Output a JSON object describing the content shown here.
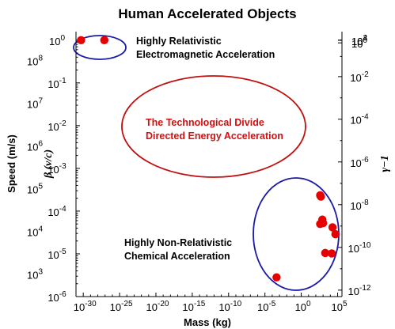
{
  "chart_data": {
    "type": "scatter",
    "title": "Human Accelerated Objects",
    "xlabel": "Mass (kg)",
    "ylabel_speed": "Speed (m/s)",
    "ylabel_beta": "β (v/c)",
    "ylabel_gamma": "γ−1",
    "xscale": "log",
    "yscale": "log",
    "xlim_exp": [
      -31,
      5.6
    ],
    "ylim_exp": [
      -6,
      0.2
    ],
    "x_tick_exponents": [
      -30,
      -25,
      -20,
      -15,
      -10,
      -5,
      0,
      5
    ],
    "beta_tick_exponents": [
      -6,
      -5,
      -4,
      -3,
      -2,
      -1,
      0
    ],
    "speed_tick_exponents": [
      3,
      4,
      5,
      6,
      7,
      8
    ],
    "gamma_tick_exponents": [
      -12,
      -10,
      -8,
      -6,
      -4,
      -2,
      0,
      2,
      4
    ],
    "tick_base": "10",
    "grid": false,
    "marker_color": "#e60000",
    "series": [
      {
        "points": [
          {
            "x_exp": -30.3,
            "y_exp": 0.0
          },
          {
            "x_exp": -27.1,
            "y_exp": 0.0
          },
          {
            "x_exp": -3.4,
            "y_exp": -5.55
          },
          {
            "x_exp": 2.6,
            "y_exp": -3.63
          },
          {
            "x_exp": 2.7,
            "y_exp": -3.66
          },
          {
            "x_exp": 2.9,
            "y_exp": -4.2
          },
          {
            "x_exp": 2.6,
            "y_exp": -4.3
          },
          {
            "x_exp": 3.0,
            "y_exp": -4.28
          },
          {
            "x_exp": 3.3,
            "y_exp": -4.98
          },
          {
            "x_exp": 4.3,
            "y_exp": -4.38
          },
          {
            "x_exp": 4.7,
            "y_exp": -4.54
          },
          {
            "x_exp": 4.2,
            "y_exp": -4.99
          }
        ]
      }
    ],
    "annotations": [
      {
        "id": "relativistic",
        "lines": [
          "Highly Relativistic",
          "Electromagnetic Acceleration"
        ],
        "color": "#000000"
      },
      {
        "id": "divide",
        "lines": [
          "The Technological Divide",
          "Directed Energy Acceleration"
        ],
        "color": "#d11111"
      },
      {
        "id": "chemical",
        "lines": [
          "Highly Non-Relativistic",
          "Chemical Acceleration"
        ],
        "color": "#000000"
      }
    ],
    "ellipse_colors": {
      "relativistic": "#1a1aa8",
      "divide": "#c01010",
      "chemical": "#1a1aa8"
    }
  }
}
